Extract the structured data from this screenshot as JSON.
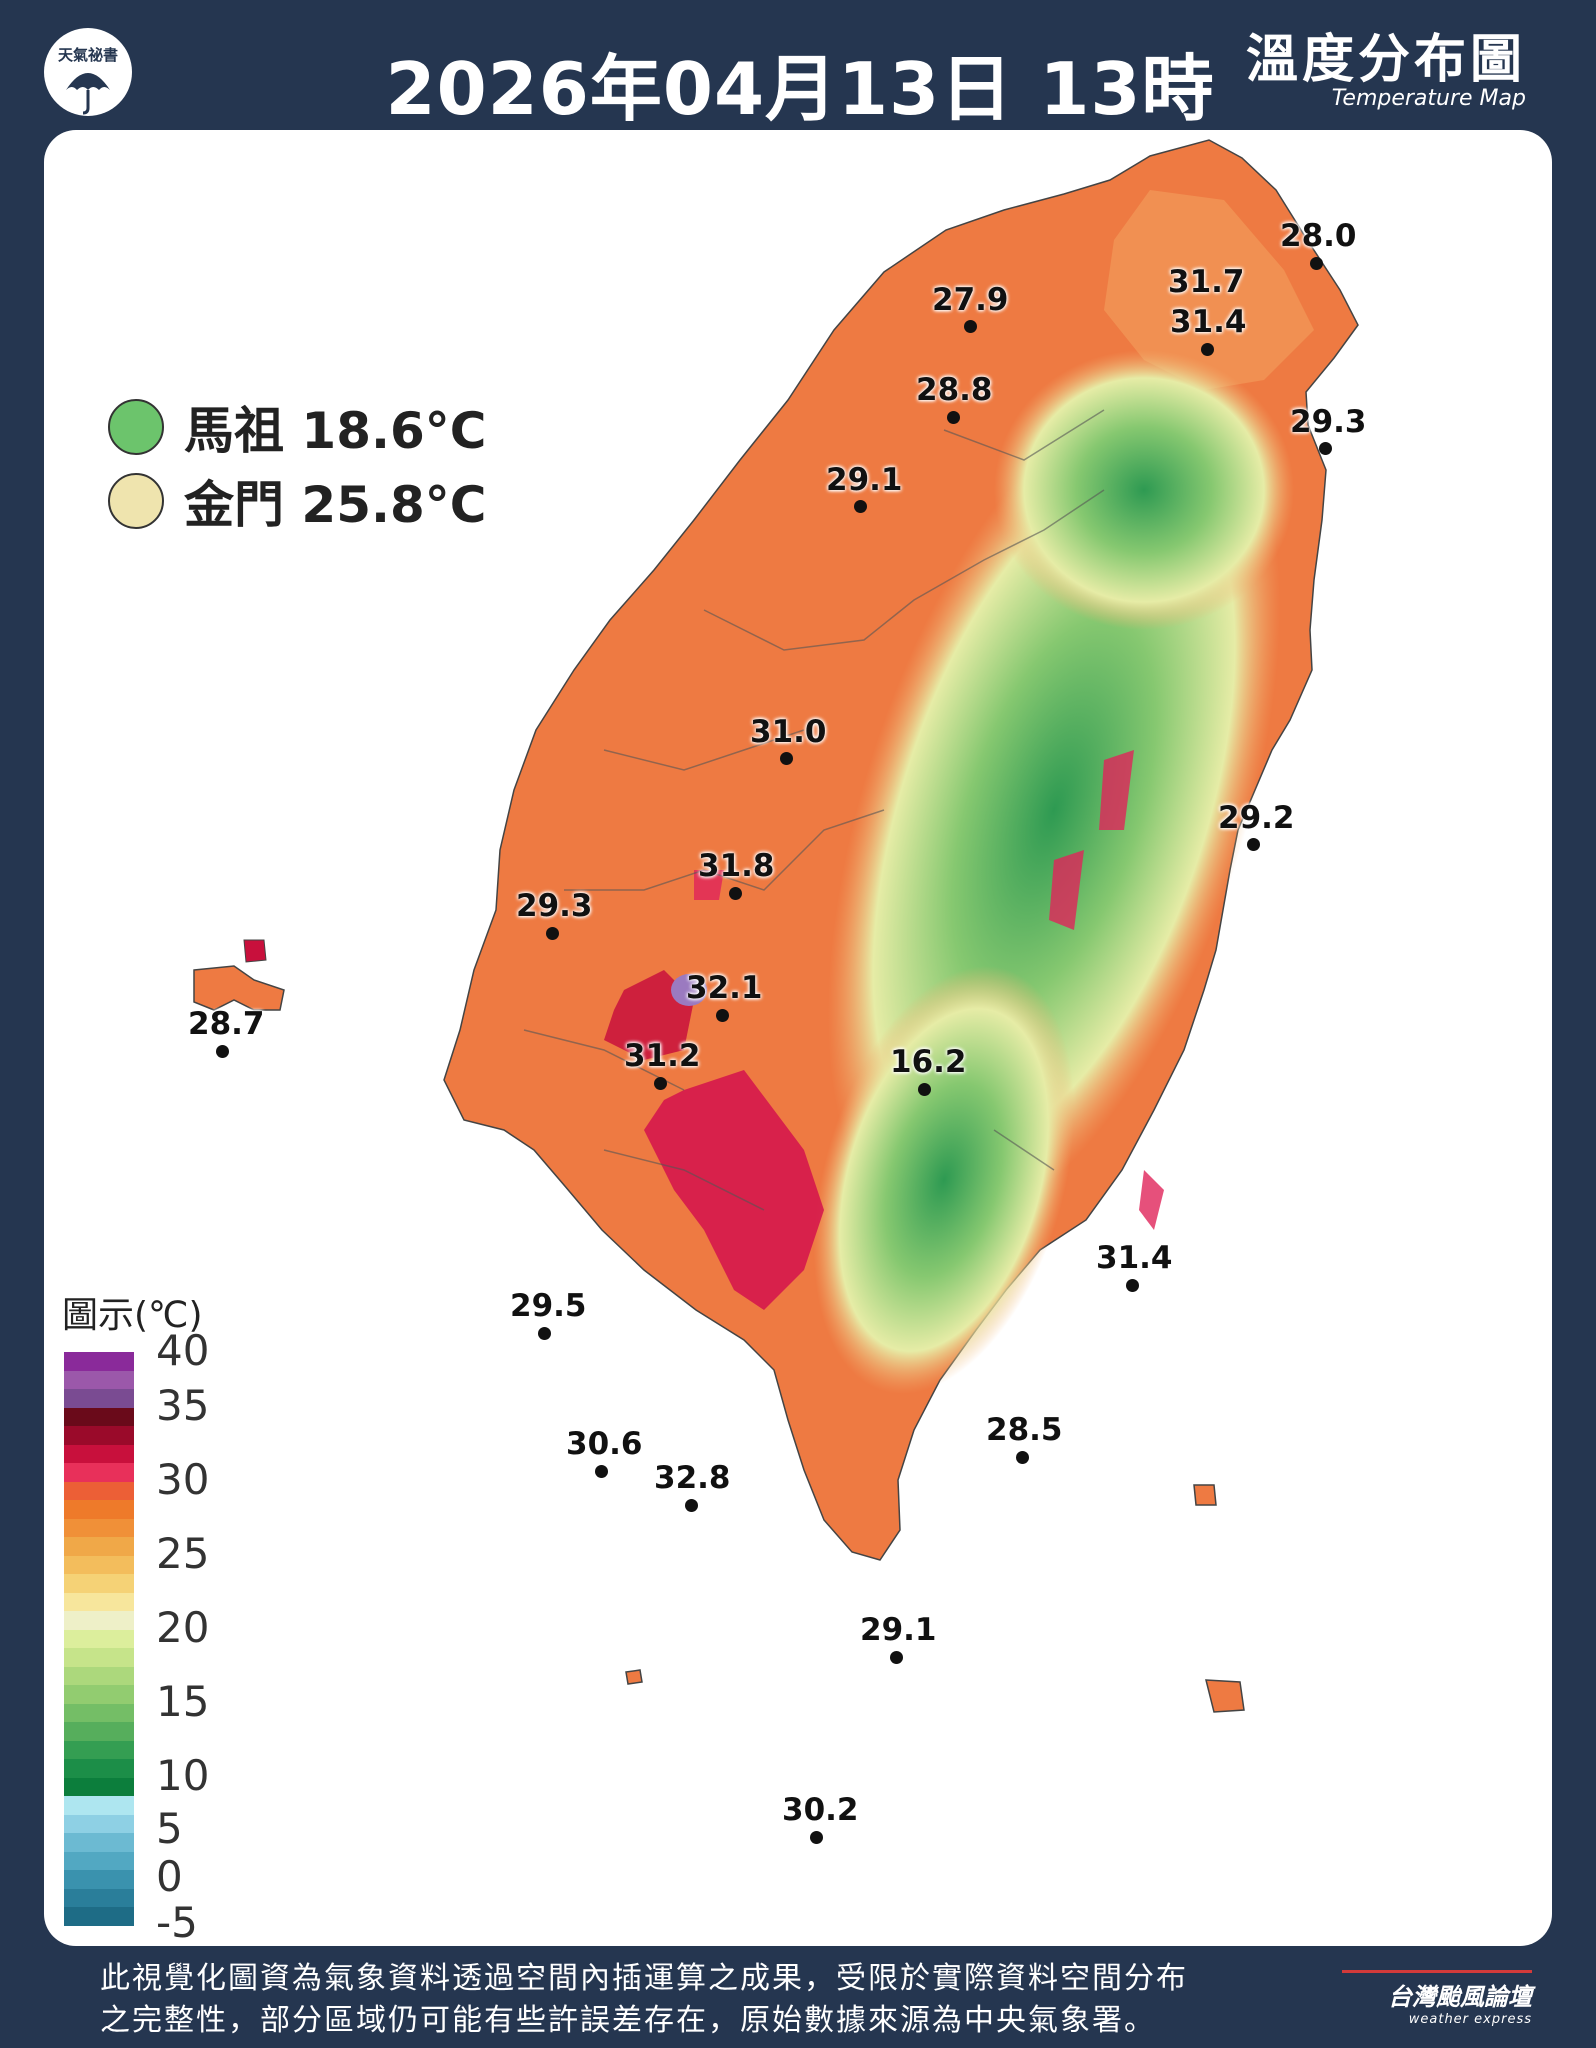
{
  "header": {
    "logo_text": "天氣祕書",
    "title": "2026年04月13日 13時",
    "map_title_zh": "溫度分布圖",
    "map_title_en": "Temperature Map"
  },
  "islands": [
    {
      "label": "馬祖 18.6°C",
      "color": "#6cc46c"
    },
    {
      "label": "金門 25.8°C",
      "color": "#efe4ae"
    }
  ],
  "legend": {
    "title": "圖示(℃)",
    "ticks": [
      "40",
      "35",
      "30",
      "25",
      "20",
      "15",
      "10",
      "5",
      "0",
      "-5"
    ],
    "colors": [
      "#8a2a9a",
      "#9b58aa",
      "#7a4b92",
      "#6a0a1a",
      "#9a0a2a",
      "#c8103c",
      "#e8305a",
      "#ec5f36",
      "#ee7a2a",
      "#f09038",
      "#f0a848",
      "#f3bd5c",
      "#f5d276",
      "#f7e69c",
      "#eef0c8",
      "#dcee9c",
      "#c6e48a",
      "#acd87c",
      "#92cc70",
      "#74be66",
      "#56ae5c",
      "#349e52",
      "#1c8e48",
      "#0c7e3c",
      "#aee6f0",
      "#8ed0e4",
      "#6cbad2",
      "#52a8c2",
      "#3a92ae",
      "#2a7e9a",
      "#1e6c86"
    ]
  },
  "stations": [
    {
      "value": "28.0"
    },
    {
      "value": "31.7"
    },
    {
      "value": "31.4"
    },
    {
      "value": "27.9"
    },
    {
      "value": "28.8"
    },
    {
      "value": "29.3"
    },
    {
      "value": "29.1"
    },
    {
      "value": "31.0"
    },
    {
      "value": "29.2"
    },
    {
      "value": "31.8"
    },
    {
      "value": "29.3"
    },
    {
      "value": "32.1"
    },
    {
      "value": "28.7"
    },
    {
      "value": "31.2"
    },
    {
      "value": "16.2"
    },
    {
      "value": "31.4"
    },
    {
      "value": "29.5"
    },
    {
      "value": "30.6"
    },
    {
      "value": "32.8"
    },
    {
      "value": "28.5"
    },
    {
      "value": "29.1"
    },
    {
      "value": "30.2"
    }
  ],
  "footer": {
    "note_line1": "此視覺化圖資為氣象資料透過空間內插運算之成果，受限於實際資料空間分布",
    "note_line2": "之完整性，部分區域仍可能有些許誤差存在，原始數據來源為中央氣象署。",
    "brand_zh": "台灣颱風論壇",
    "brand_en": "weather express"
  }
}
